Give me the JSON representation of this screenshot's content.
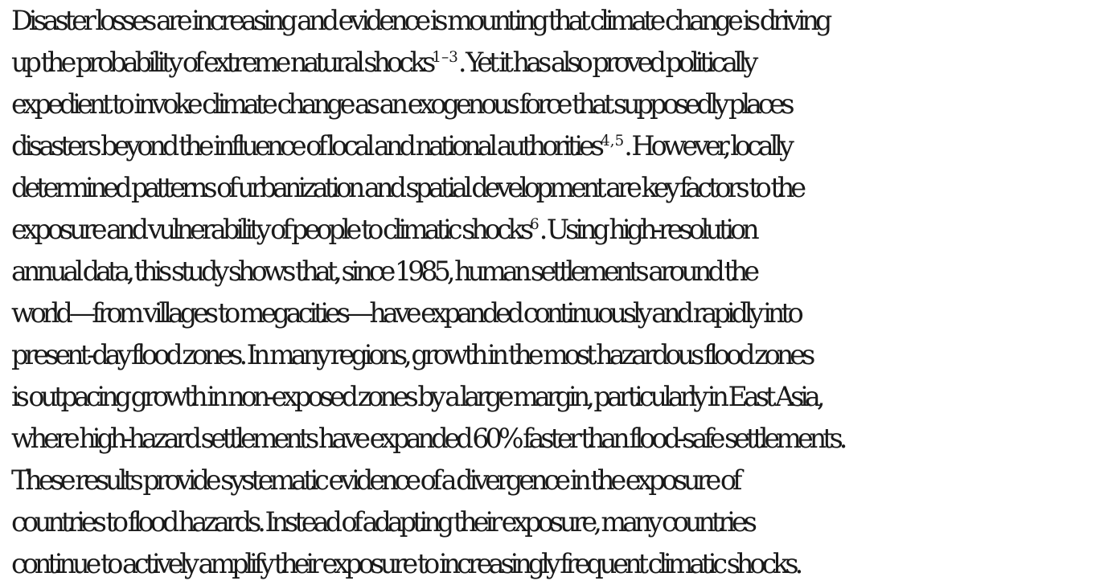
{
  "abstract": {
    "lines": [
      {
        "text": "Disaster losses are increasing and evidence is mounting that climate change is driving"
      },
      {
        "before": "up the probability of extreme natural shocks",
        "sup": "1–3",
        "after": ". Yet it has also proved politically"
      },
      {
        "text": "expedient to invoke climate change as an exogenous force that supposedly places"
      },
      {
        "before": "disasters beyond the influence of local and national authorities",
        "sup": "4,5",
        "after": ". However, locally"
      },
      {
        "text": "determined patterns of urbanization and spatial development are key factors to the"
      },
      {
        "before": "exposure and vulnerability of people to climatic shocks",
        "sup": "6",
        "after": ". Using high-resolution"
      },
      {
        "text": "annual data, this study shows that, since 1985, human settlements around the"
      },
      {
        "text": "world—from villages to megacities—have expanded continuously and rapidly into"
      },
      {
        "text": "present-day flood zones. In many regions, growth in the most hazardous flood zones"
      },
      {
        "text": "is outpacing growth in non-exposed zones by a large margin, particularly in East Asia,"
      },
      {
        "text": "where high-hazard settlements have expanded 60% faster than flood-safe settlements."
      },
      {
        "text": "These results provide systematic evidence of a divergence in the exposure of"
      },
      {
        "text": "countries to flood hazards. Instead of adapting their exposure, many countries"
      },
      {
        "text": "continue to actively amplify their exposure to increasingly frequent climatic shocks."
      }
    ]
  }
}
